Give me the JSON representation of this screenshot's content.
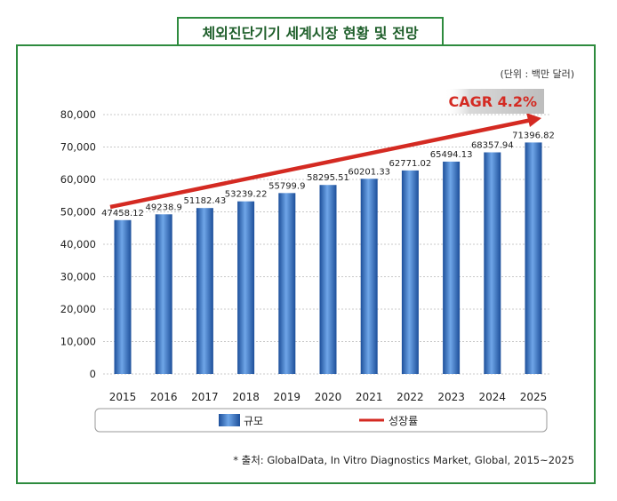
{
  "title": "체외진단기기 세계시장 현황 및 전망",
  "unit": "(단위 : 백만 달러)",
  "source": "* 출처: GlobalData, In Vitro Diagnostics Market, Global, 2015~2025",
  "cagr_label": "CAGR 4.2%",
  "colors": {
    "bar": "#2f6fc0",
    "trend": "#d42a22",
    "frame": "#2e8b3e"
  },
  "chart_data": {
    "type": "bar",
    "title": "체외진단기기 세계시장 현황 및 전망",
    "categories": [
      "2015",
      "2016",
      "2017",
      "2018",
      "2019",
      "2020",
      "2021",
      "2022",
      "2023",
      "2024",
      "2025"
    ],
    "series": [
      {
        "name": "규모",
        "values": [
          47458.12,
          49238.9,
          51182.43,
          53239.22,
          55799.9,
          58295.51,
          60201.33,
          62771.02,
          65494.13,
          68357.94,
          71396.82
        ],
        "labels": [
          "47458.12",
          "49238.9",
          "51182.43",
          "53239.22",
          "55799.9",
          "58295.51",
          "60201.33",
          "62771.02",
          "65494.13",
          "68357.94",
          "71396.82"
        ]
      },
      {
        "name": "성장률",
        "type": "line",
        "annotation": "CAGR 4.2%"
      }
    ],
    "yticks": [
      "0",
      "10,000",
      "20,000",
      "30,000",
      "40,000",
      "50,000",
      "60,000",
      "70,000",
      "80,000"
    ],
    "ylim": [
      0,
      80000
    ],
    "grid": true,
    "legend": [
      "규모",
      "성장률"
    ],
    "legend_position": "bottom"
  }
}
